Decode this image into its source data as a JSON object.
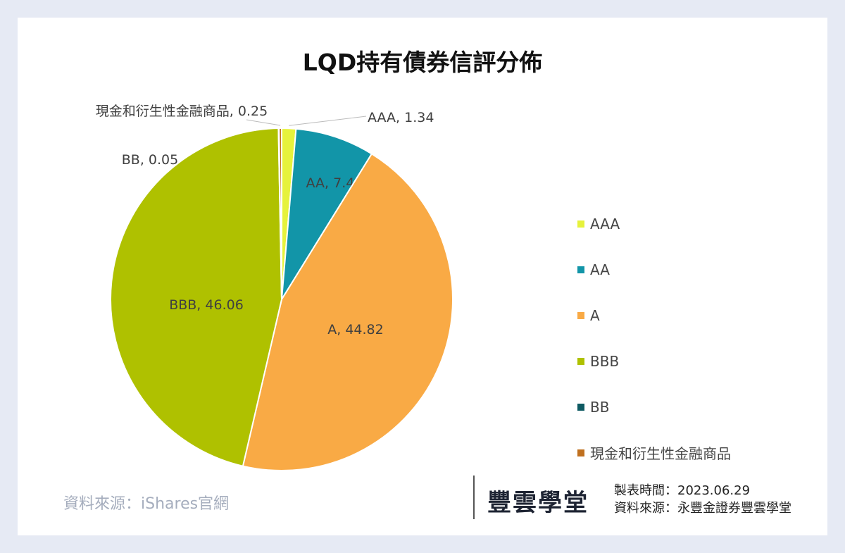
{
  "chart_data": {
    "type": "pie",
    "title": "LQD持有債券信評分佈",
    "categories": [
      "AAA",
      "AA",
      "A",
      "BBB",
      "BB",
      "現金和衍生性金融商品"
    ],
    "values": [
      1.34,
      7.48,
      44.82,
      46.06,
      0.05,
      0.25
    ],
    "data_labels": [
      "AAA, 1.34",
      "AA, 7.48",
      "A, 44.82",
      "BBB, 46.06",
      "BB, 0.05",
      "現金和衍生性金融商品, 0.25"
    ],
    "colors": [
      "#e6f23c",
      "#1295a8",
      "#f9aa45",
      "#afc100",
      "#0e5a62",
      "#c0701f"
    ],
    "start_angle": "12 o'clock",
    "direction": "clockwise",
    "legend_position": "right"
  },
  "footer": {
    "source": "資料來源：iShares官網",
    "logo": "豐雲學堂",
    "made_date": "製表時間：2023.06.29",
    "made_source": "資料來源：永豐金證券豐雲學堂"
  }
}
